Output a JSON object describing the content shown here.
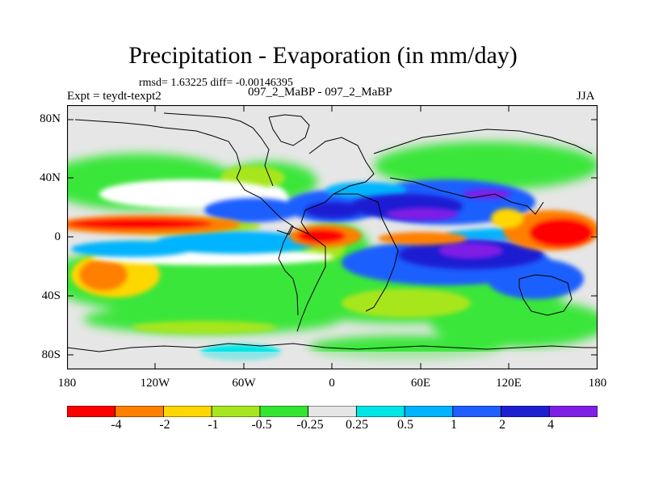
{
  "title": "Precipitation - Evaporation (in mm/day)",
  "stats": "rmsd= 1.63225 diff= -0.00146395",
  "left_label": "Expt = teydt-texpt2",
  "center_label": "097_2_MaBP - 097_2_MaBP",
  "right_label": "JJA",
  "y_ticks": [
    "80N",
    "40N",
    "0",
    "40S",
    "80S"
  ],
  "x_ticks": [
    "180",
    "120W",
    "60W",
    "0",
    "60E",
    "120E",
    "180"
  ],
  "colorbar": {
    "colors": [
      "#ff0000",
      "#ff7f00",
      "#ffd700",
      "#a8e61f",
      "#32e632",
      "#e6e6e6",
      "#00e6e6",
      "#00b4ff",
      "#1f5fff",
      "#1f1fd2",
      "#7f1fe6"
    ],
    "labels": [
      "-4",
      "-2",
      "-1",
      "-0.5",
      "-0.25",
      "0.25",
      "0.5",
      "1",
      "2",
      "4"
    ]
  },
  "colors": {
    "ocean_neutral": "#e6e6e6",
    "coastline": "#000000"
  }
}
